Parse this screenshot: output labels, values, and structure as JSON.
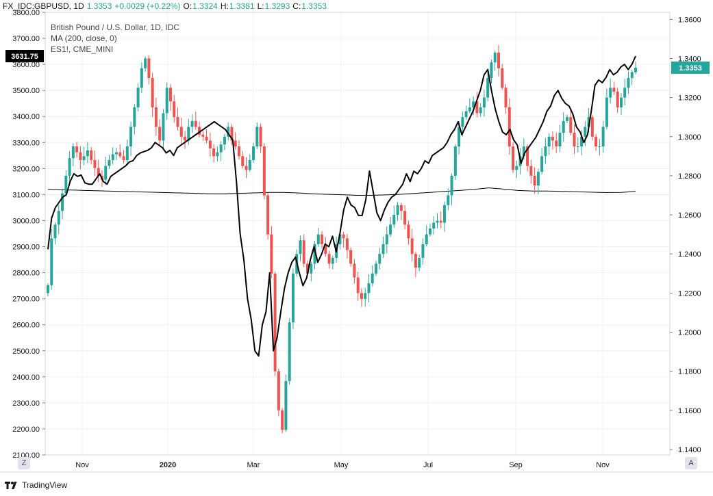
{
  "header": {
    "symbol": "FX_IDC:GBPUSD, 1D",
    "last": "1.3353",
    "change": "+0.0029 (+0.22%)",
    "open_label": "O:",
    "open": "1.3324",
    "high_label": "H:",
    "high": "1.3381",
    "low_label": "L:",
    "low": "1.3293",
    "close_label": "C:",
    "close": "1.3353"
  },
  "legend": {
    "title": "British Pound / U.S. Dollar, 1D, IDC",
    "ma": "MA (200, close, 0)",
    "overlay": "ES1!, CME_MINI"
  },
  "footer": {
    "brand": "TradingView",
    "left_button": "Z",
    "right_button": "A"
  },
  "colors": {
    "up": "#26a69a",
    "down": "#ef5350",
    "overlay": "#000000",
    "ma": "#000000",
    "grid": "#eef0f3"
  },
  "chart_data": {
    "type": "line",
    "x_tick_labels": [
      "Nov",
      "2020",
      "Mar",
      "May",
      "Jul",
      "Sep",
      "Nov"
    ],
    "left_axis": {
      "tick_labels": [
        "2100.00",
        "2200.00",
        "2300.00",
        "2400.00",
        "2500.00",
        "2600.00",
        "2700.00",
        "2800.00",
        "2900.00",
        "3000.00",
        "3100.00",
        "3200.00",
        "3300.00",
        "3400.00",
        "3500.00",
        "3600.00",
        "3700.00",
        "3800.00"
      ],
      "ylim": [
        2100,
        3800
      ],
      "last_value_label": "3631.75"
    },
    "right_axis": {
      "tick_labels": [
        "1.1400",
        "1.1600",
        "1.1800",
        "1.2000",
        "1.2200",
        "1.2400",
        "1.2600",
        "1.2800",
        "1.3000",
        "1.3200",
        "1.3400",
        "1.3600"
      ],
      "ylim": [
        1.1372,
        1.3636
      ],
      "last_value_label": "1.3353"
    },
    "series": [
      {
        "name": "British Pound / U.S. Dollar, 1D, IDC",
        "axis": "right",
        "style": "candlestick",
        "values": [
          1.224,
          1.248,
          1.255,
          1.262,
          1.271,
          1.28,
          1.289,
          1.295,
          1.292,
          1.288,
          1.29,
          1.293,
          1.288,
          1.284,
          1.28,
          1.278,
          1.285,
          1.288,
          1.291,
          1.292,
          1.29,
          1.288,
          1.295,
          1.305,
          1.315,
          1.325,
          1.335,
          1.34,
          1.33,
          1.315,
          1.305,
          1.298,
          1.312,
          1.325,
          1.318,
          1.31,
          1.305,
          1.3,
          1.298,
          1.305,
          1.308,
          1.305,
          1.301,
          1.3,
          1.298,
          1.294,
          1.29,
          1.292,
          1.296,
          1.3,
          1.305,
          1.298,
          1.295,
          1.29,
          1.285,
          1.283,
          1.288,
          1.295,
          1.305,
          1.295,
          1.27,
          1.25,
          1.23,
          1.18,
          1.16,
          1.15,
          1.175,
          1.205,
          1.23,
          1.24,
          1.247,
          1.235,
          1.23,
          1.235,
          1.245,
          1.25,
          1.245,
          1.24,
          1.235,
          1.238,
          1.245,
          1.25,
          1.248,
          1.242,
          1.235,
          1.228,
          1.22,
          1.217,
          1.22,
          1.225,
          1.23,
          1.235,
          1.24,
          1.245,
          1.25,
          1.255,
          1.26,
          1.265,
          1.262,
          1.255,
          1.248,
          1.24,
          1.233,
          1.238,
          1.245,
          1.25,
          1.253,
          1.256,
          1.257,
          1.256,
          1.265,
          1.27,
          1.28,
          1.295,
          1.305,
          1.31,
          1.313,
          1.315,
          1.318,
          1.312,
          1.315,
          1.32,
          1.33,
          1.338,
          1.343,
          1.335,
          1.325,
          1.315,
          1.295,
          1.283,
          1.285,
          1.29,
          1.295,
          1.285,
          1.28,
          1.275,
          1.282,
          1.29,
          1.295,
          1.3,
          1.298,
          1.295,
          1.302,
          1.308,
          1.31,
          1.302,
          1.295,
          1.295,
          1.3,
          1.305,
          1.31,
          1.3,
          1.295,
          1.295,
          1.305,
          1.32,
          1.325,
          1.323,
          1.315,
          1.32,
          1.325,
          1.33,
          1.333,
          1.3353
        ]
      },
      {
        "name": "MA (200, close, 0)",
        "axis": "right",
        "style": "line",
        "values": [
          1.273,
          1.2728,
          1.2726,
          1.2724,
          1.2722,
          1.272,
          1.2718,
          1.2716,
          1.2714,
          1.2712,
          1.271,
          1.2708,
          1.2708,
          1.271,
          1.2712,
          1.2715,
          1.2715,
          1.2712,
          1.2708,
          1.2705,
          1.2703,
          1.27,
          1.27,
          1.2702,
          1.2705,
          1.271,
          1.2715,
          1.272,
          1.2725,
          1.273,
          1.2738,
          1.2732,
          1.2725,
          1.2722,
          1.2722,
          1.272,
          1.2718,
          1.2716,
          1.2714,
          1.2715,
          1.272
        ]
      },
      {
        "name": "ES1!, CME_MINI",
        "axis": "left",
        "style": "line",
        "values": [
          2890,
          3010,
          3050,
          3070,
          3090,
          3100,
          3150,
          3180,
          3170,
          3175,
          3145,
          3140,
          3140,
          3160,
          3180,
          3150,
          3140,
          3170,
          3180,
          3190,
          3200,
          3210,
          3225,
          3230,
          3250,
          3260,
          3265,
          3270,
          3280,
          3300,
          3290,
          3280,
          3260,
          3270,
          3250,
          3280,
          3290,
          3300,
          3310,
          3320,
          3330,
          3340,
          3350,
          3360,
          3370,
          3380,
          3370,
          3360,
          3350,
          3330,
          3310,
          3150,
          2950,
          2850,
          2700,
          2620,
          2500,
          2480,
          2600,
          2650,
          2800,
          2500,
          2550,
          2650,
          2740,
          2800,
          2840,
          2860,
          2800,
          2750,
          2780,
          2850,
          2900,
          2840,
          2870,
          2910,
          2900,
          2940,
          2880,
          2950,
          3040,
          3090,
          3060,
          3050,
          3020,
          3020,
          3080,
          3190,
          3110,
          3030,
          3000,
          3040,
          3070,
          3090,
          3100,
          3120,
          3140,
          3180,
          3150,
          3190,
          3180,
          3200,
          3230,
          3220,
          3250,
          3260,
          3270,
          3280,
          3300,
          3330,
          3350,
          3380,
          3330,
          3360,
          3390,
          3420,
          3460,
          3500,
          3560,
          3580,
          3500,
          3430,
          3380,
          3340,
          3330,
          3350,
          3310,
          3290,
          3220,
          3260,
          3280,
          3300,
          3320,
          3350,
          3380,
          3420,
          3440,
          3480,
          3500,
          3470,
          3450,
          3440,
          3410,
          3360,
          3340,
          3300,
          3330,
          3420,
          3520,
          3540,
          3530,
          3550,
          3580,
          3560,
          3570,
          3590,
          3600,
          3580,
          3600,
          3631.75
        ]
      }
    ]
  }
}
